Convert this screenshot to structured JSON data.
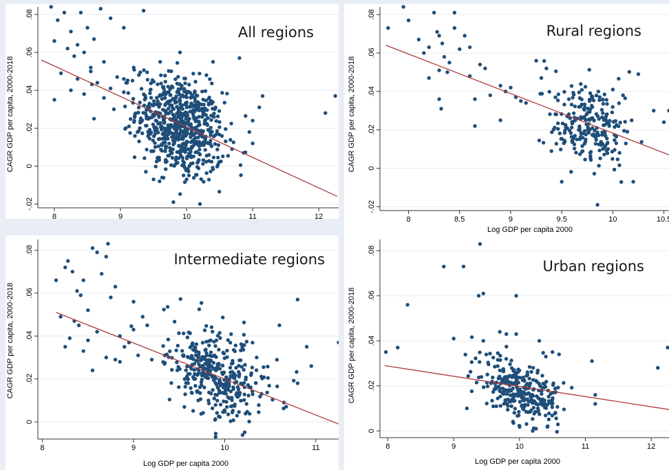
{
  "chart_data": [
    {
      "type": "scatter",
      "title": "All regions",
      "xlabel": "",
      "ylabel": "CAGR GDP per capita, 2000-2018",
      "xlim": [
        7.75,
        12.3
      ],
      "ylim": [
        -0.022,
        0.084
      ],
      "xticks": [
        8,
        9,
        10,
        11,
        12
      ],
      "xtick_labels": [
        "8",
        "9",
        "10",
        "11",
        "12"
      ],
      "yticks": [
        -0.02,
        0,
        0.02,
        0.04,
        0.06,
        0.08
      ],
      "ytick_labels": [
        "-.02",
        "0",
        ".02",
        ".04",
        ".06",
        ".08"
      ],
      "grid": true,
      "marker_color": "#1f4e79",
      "fit_color": "#b03a3a",
      "fit_line": {
        "x": [
          7.8,
          12.28
        ],
        "y": [
          0.056,
          -0.016
        ]
      },
      "cloud": {
        "cx": 9.9,
        "cy": 0.021,
        "sx": 0.33,
        "sy": 0.013,
        "n": 700
      },
      "extra_points": [
        {
          "x": 7.95,
          "y": 0.084
        },
        {
          "x": 8.0,
          "y": 0.066
        },
        {
          "x": 8.05,
          "y": 0.077
        },
        {
          "x": 8.15,
          "y": 0.081
        },
        {
          "x": 8.2,
          "y": 0.062
        },
        {
          "x": 8.25,
          "y": 0.071
        },
        {
          "x": 8.3,
          "y": 0.058
        },
        {
          "x": 8.35,
          "y": 0.064
        },
        {
          "x": 8.4,
          "y": 0.081
        },
        {
          "x": 8.45,
          "y": 0.06
        },
        {
          "x": 8.5,
          "y": 0.073
        },
        {
          "x": 8.55,
          "y": 0.052
        },
        {
          "x": 8.6,
          "y": 0.067
        },
        {
          "x": 8.7,
          "y": 0.083
        },
        {
          "x": 8.75,
          "y": 0.055
        },
        {
          "x": 8.85,
          "y": 0.078
        },
        {
          "x": 9.05,
          "y": 0.073
        },
        {
          "x": 8.0,
          "y": 0.035
        },
        {
          "x": 8.1,
          "y": 0.049
        },
        {
          "x": 8.25,
          "y": 0.04
        },
        {
          "x": 8.35,
          "y": 0.046
        },
        {
          "x": 8.45,
          "y": 0.038
        },
        {
          "x": 8.55,
          "y": 0.05
        },
        {
          "x": 8.65,
          "y": 0.044
        },
        {
          "x": 8.75,
          "y": 0.036
        },
        {
          "x": 8.85,
          "y": 0.041
        },
        {
          "x": 8.95,
          "y": 0.047
        },
        {
          "x": 9.05,
          "y": 0.039
        },
        {
          "x": 8.6,
          "y": 0.025
        },
        {
          "x": 8.9,
          "y": 0.03
        },
        {
          "x": 9.1,
          "y": 0.044
        },
        {
          "x": 9.2,
          "y": 0.052
        },
        {
          "x": 9.35,
          "y": 0.082
        },
        {
          "x": 9.6,
          "y": 0.055
        },
        {
          "x": 9.9,
          "y": 0.06
        },
        {
          "x": 10.3,
          "y": 0.048
        },
        {
          "x": 10.4,
          "y": 0.055
        },
        {
          "x": 10.8,
          "y": 0.057
        },
        {
          "x": 11.1,
          "y": 0.031
        },
        {
          "x": 11.15,
          "y": 0.037
        },
        {
          "x": 11.0,
          "y": 0.024
        },
        {
          "x": 10.95,
          "y": 0.018
        },
        {
          "x": 11.0,
          "y": 0.012
        },
        {
          "x": 12.1,
          "y": 0.028
        },
        {
          "x": 12.25,
          "y": 0.037
        },
        {
          "x": 9.8,
          "y": -0.019
        },
        {
          "x": 10.0,
          "y": -0.007
        },
        {
          "x": 9.5,
          "y": -0.007
        }
      ]
    },
    {
      "type": "scatter",
      "title": "Rural regions",
      "xlabel": "Log GDP per capita 2000",
      "ylabel": "CAGR GDP per capita, 2000-2018",
      "xlim": [
        7.72,
        10.55
      ],
      "ylim": [
        -0.022,
        0.084
      ],
      "xticks": [
        8,
        8.5,
        9,
        9.5,
        10,
        10.5
      ],
      "xtick_labels": [
        "8",
        "8.5",
        "9",
        "9.5",
        "10",
        "10.5"
      ],
      "yticks": [
        -0.02,
        0,
        0.02,
        0.04,
        0.06,
        0.08
      ],
      "ytick_labels": [
        "-.02",
        "0",
        ".02",
        ".04",
        ".06",
        ".08"
      ],
      "grid": true,
      "marker_color": "#1f4e79",
      "fit_color": "#b03a3a",
      "fit_line": {
        "x": [
          7.78,
          10.55
        ],
        "y": [
          0.064,
          0.007
        ]
      },
      "cloud": {
        "cx": 9.75,
        "cy": 0.022,
        "sx": 0.2,
        "sy": 0.011,
        "n": 240
      },
      "extra_points": [
        {
          "x": 7.8,
          "y": 0.073
        },
        {
          "x": 7.95,
          "y": 0.084
        },
        {
          "x": 8.0,
          "y": 0.077
        },
        {
          "x": 8.1,
          "y": 0.067
        },
        {
          "x": 8.15,
          "y": 0.06
        },
        {
          "x": 8.2,
          "y": 0.063
        },
        {
          "x": 8.25,
          "y": 0.081
        },
        {
          "x": 8.28,
          "y": 0.071
        },
        {
          "x": 8.3,
          "y": 0.069
        },
        {
          "x": 8.33,
          "y": 0.065
        },
        {
          "x": 8.35,
          "y": 0.058
        },
        {
          "x": 8.4,
          "y": 0.055
        },
        {
          "x": 8.45,
          "y": 0.073
        },
        {
          "x": 8.5,
          "y": 0.062
        },
        {
          "x": 8.55,
          "y": 0.069
        },
        {
          "x": 8.6,
          "y": 0.063
        },
        {
          "x": 8.3,
          "y": 0.051
        },
        {
          "x": 8.38,
          "y": 0.05
        },
        {
          "x": 8.45,
          "y": 0.081
        },
        {
          "x": 8.2,
          "y": 0.047
        },
        {
          "x": 8.3,
          "y": 0.036
        },
        {
          "x": 8.32,
          "y": 0.031
        },
        {
          "x": 8.6,
          "y": 0.048
        },
        {
          "x": 8.65,
          "y": 0.036
        },
        {
          "x": 8.7,
          "y": 0.054
        },
        {
          "x": 8.75,
          "y": 0.052
        },
        {
          "x": 8.8,
          "y": 0.038
        },
        {
          "x": 8.9,
          "y": 0.043
        },
        {
          "x": 8.95,
          "y": 0.04
        },
        {
          "x": 9.0,
          "y": 0.042
        },
        {
          "x": 9.05,
          "y": 0.037
        },
        {
          "x": 9.1,
          "y": 0.035
        },
        {
          "x": 9.15,
          "y": 0.034
        },
        {
          "x": 8.65,
          "y": 0.022
        },
        {
          "x": 8.9,
          "y": 0.025
        },
        {
          "x": 9.25,
          "y": 0.056
        },
        {
          "x": 9.3,
          "y": 0.047
        },
        {
          "x": 9.35,
          "y": 0.052
        },
        {
          "x": 10.0,
          "y": 0.041
        },
        {
          "x": 10.1,
          "y": 0.038
        },
        {
          "x": 10.25,
          "y": 0.049
        },
        {
          "x": 10.4,
          "y": 0.03
        },
        {
          "x": 10.5,
          "y": 0.024
        },
        {
          "x": 10.55,
          "y": 0.03
        },
        {
          "x": 9.5,
          "y": -0.007
        },
        {
          "x": 9.85,
          "y": -0.019
        },
        {
          "x": 10.2,
          "y": -0.007
        }
      ]
    },
    {
      "type": "scatter",
      "title": "Intermediate regions",
      "xlabel": "Log GDP per capita 2000",
      "ylabel": "CAGR GDP per capita, 2000-2018",
      "xlim": [
        7.95,
        11.25
      ],
      "ylim": [
        -0.008,
        0.085
      ],
      "xticks": [
        8,
        9,
        10,
        11
      ],
      "xtick_labels": [
        "8",
        "9",
        "10",
        "11"
      ],
      "yticks": [
        0,
        0.02,
        0.04,
        0.06,
        0.08
      ],
      "ytick_labels": [
        "0",
        ".02",
        ".04",
        ".06",
        ".08"
      ],
      "grid": true,
      "marker_color": "#1f4e79",
      "fit_color": "#b03a3a",
      "fit_line": {
        "x": [
          8.15,
          11.25
        ],
        "y": [
          0.051,
          -0.001
        ]
      },
      "cloud": {
        "cx": 9.9,
        "cy": 0.022,
        "sx": 0.27,
        "sy": 0.011,
        "n": 380
      },
      "extra_points": [
        {
          "x": 8.15,
          "y": 0.066
        },
        {
          "x": 8.2,
          "y": 0.049
        },
        {
          "x": 8.25,
          "y": 0.072
        },
        {
          "x": 8.28,
          "y": 0.075
        },
        {
          "x": 8.33,
          "y": 0.07
        },
        {
          "x": 8.38,
          "y": 0.061
        },
        {
          "x": 8.42,
          "y": 0.059
        },
        {
          "x": 8.45,
          "y": 0.066
        },
        {
          "x": 8.5,
          "y": 0.052
        },
        {
          "x": 8.55,
          "y": 0.081
        },
        {
          "x": 8.6,
          "y": 0.079
        },
        {
          "x": 8.65,
          "y": 0.069
        },
        {
          "x": 8.7,
          "y": 0.077
        },
        {
          "x": 8.72,
          "y": 0.083
        },
        {
          "x": 8.75,
          "y": 0.058
        },
        {
          "x": 8.8,
          "y": 0.063
        },
        {
          "x": 8.25,
          "y": 0.035
        },
        {
          "x": 8.3,
          "y": 0.039
        },
        {
          "x": 8.35,
          "y": 0.047
        },
        {
          "x": 8.4,
          "y": 0.045
        },
        {
          "x": 8.45,
          "y": 0.033
        },
        {
          "x": 8.5,
          "y": 0.038
        },
        {
          "x": 8.55,
          "y": 0.024
        },
        {
          "x": 8.6,
          "y": 0.042
        },
        {
          "x": 8.7,
          "y": 0.03
        },
        {
          "x": 8.8,
          "y": 0.029
        },
        {
          "x": 8.85,
          "y": 0.04
        },
        {
          "x": 8.9,
          "y": 0.035
        },
        {
          "x": 8.95,
          "y": 0.037
        },
        {
          "x": 9.0,
          "y": 0.056
        },
        {
          "x": 9.05,
          "y": 0.031
        },
        {
          "x": 9.1,
          "y": 0.049
        },
        {
          "x": 9.15,
          "y": 0.045
        },
        {
          "x": 9.2,
          "y": 0.029
        },
        {
          "x": 9.0,
          "y": 0.043
        },
        {
          "x": 8.85,
          "y": 0.028
        },
        {
          "x": 10.6,
          "y": 0.045
        },
        {
          "x": 10.8,
          "y": 0.057
        },
        {
          "x": 10.9,
          "y": 0.035
        },
        {
          "x": 11.25,
          "y": 0.037
        },
        {
          "x": 10.95,
          "y": 0.026
        },
        {
          "x": 10.8,
          "y": 0.018
        },
        {
          "x": 10.65,
          "y": 0.009
        },
        {
          "x": 9.9,
          "y": -0.007
        }
      ]
    },
    {
      "type": "scatter",
      "title": "Urban regions",
      "xlabel": "Log GDP per capita 2000",
      "ylabel": "CAGR GDP per capita, 2000-2018",
      "xlim": [
        7.88,
        12.27
      ],
      "ylim": [
        -0.003,
        0.085
      ],
      "xticks": [
        8,
        9,
        10,
        11,
        12
      ],
      "xtick_labels": [
        "8",
        "9",
        "10",
        "11",
        "12"
      ],
      "yticks": [
        0,
        0.02,
        0.04,
        0.06,
        0.08
      ],
      "ytick_labels": [
        "0",
        ".02",
        ".04",
        ".06",
        ".08"
      ],
      "grid": true,
      "marker_color": "#1f4e79",
      "fit_color": "#b03a3a",
      "fit_line": {
        "x": [
          7.95,
          12.27
        ],
        "y": [
          0.029,
          0.0095
        ]
      },
      "cloud": {
        "cx": 10.0,
        "cy": 0.018,
        "sx": 0.3,
        "sy": 0.007,
        "n": 300
      },
      "extra_points": [
        {
          "x": 7.97,
          "y": 0.035
        },
        {
          "x": 8.15,
          "y": 0.037
        },
        {
          "x": 8.3,
          "y": 0.056
        },
        {
          "x": 8.85,
          "y": 0.073
        },
        {
          "x": 9.15,
          "y": 0.073
        },
        {
          "x": 9.4,
          "y": 0.083
        },
        {
          "x": 9.38,
          "y": 0.06
        },
        {
          "x": 9.45,
          "y": 0.061
        },
        {
          "x": 9.95,
          "y": 0.06
        },
        {
          "x": 9.0,
          "y": 0.041
        },
        {
          "x": 9.7,
          "y": 0.044
        },
        {
          "x": 9.8,
          "y": 0.043
        },
        {
          "x": 9.95,
          "y": 0.043
        },
        {
          "x": 10.3,
          "y": 0.04
        },
        {
          "x": 9.45,
          "y": 0.04
        },
        {
          "x": 10.4,
          "y": 0.033
        },
        {
          "x": 10.5,
          "y": 0.035
        },
        {
          "x": 10.6,
          "y": 0.034
        },
        {
          "x": 11.1,
          "y": 0.031
        },
        {
          "x": 11.15,
          "y": 0.016
        },
        {
          "x": 11.15,
          "y": 0.012
        },
        {
          "x": 12.1,
          "y": 0.028
        },
        {
          "x": 12.25,
          "y": 0.037
        },
        {
          "x": 9.2,
          "y": 0.01
        },
        {
          "x": 10.2,
          "y": 0.0
        },
        {
          "x": 10.25,
          "y": 0.001
        }
      ]
    }
  ]
}
